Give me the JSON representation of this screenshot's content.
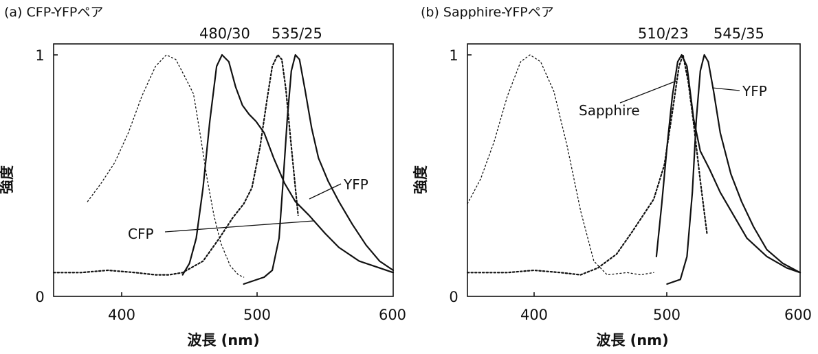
{
  "panels": [
    {
      "title": "(a)  CFP-YFPペア",
      "filters": [
        "480/30",
        "535/25"
      ],
      "ylabel": "強度",
      "xlabel": "波長 (nm)",
      "annotations": [
        "CFP",
        "YFP"
      ]
    },
    {
      "title": "(b)  Sapphire-YFPペア",
      "filters": [
        "510/23",
        "545/35"
      ],
      "ylabel": "強度",
      "xlabel": "波長 (nm)",
      "annotations": [
        "Sapphire",
        "YFP"
      ]
    }
  ],
  "chart_data": [
    {
      "type": "line",
      "title": "(a)  CFP-YFPペア",
      "xlabel": "波長 (nm)",
      "ylabel": "強度",
      "xlim": [
        350,
        600
      ],
      "ylim": [
        0,
        1
      ],
      "xticks": [
        400,
        500,
        600
      ],
      "yticks": [
        0,
        1
      ],
      "filter_labels": [
        {
          "text": "480/30",
          "x": 480
        },
        {
          "text": "535/25",
          "x": 535
        }
      ],
      "series": [
        {
          "name": "CFP",
          "style": "dotted-thin",
          "points": [
            [
              375,
              0.36
            ],
            [
              385,
              0.44
            ],
            [
              395,
              0.53
            ],
            [
              405,
              0.66
            ],
            [
              415,
              0.82
            ],
            [
              425,
              0.95
            ],
            [
              433,
              1.0
            ],
            [
              440,
              0.98
            ],
            [
              447,
              0.9
            ],
            [
              453,
              0.83
            ],
            [
              458,
              0.65
            ],
            [
              463,
              0.46
            ],
            [
              468,
              0.3
            ],
            [
              473,
              0.18
            ],
            [
              480,
              0.08
            ],
            [
              486,
              0.04
            ],
            [
              490,
              0.03
            ]
          ]
        },
        {
          "style": "solid-bold",
          "points": [
            [
              445,
              0.04
            ],
            [
              450,
              0.09
            ],
            [
              455,
              0.2
            ],
            [
              460,
              0.42
            ],
            [
              465,
              0.71
            ],
            [
              470,
              0.95
            ],
            [
              474,
              1.0
            ],
            [
              479,
              0.97
            ],
            [
              484,
              0.86
            ],
            [
              489,
              0.78
            ],
            [
              494,
              0.74
            ],
            [
              499,
              0.71
            ],
            [
              505,
              0.66
            ],
            [
              512,
              0.55
            ],
            [
              520,
              0.44
            ],
            [
              528,
              0.36
            ],
            [
              538,
              0.3
            ],
            [
              550,
              0.22
            ],
            [
              560,
              0.16
            ],
            [
              575,
              0.1
            ],
            [
              590,
              0.07
            ],
            [
              600,
              0.05
            ]
          ]
        },
        {
          "style": "dotted-bold",
          "points": [
            [
              350,
              0.05
            ],
            [
              370,
              0.05
            ],
            [
              390,
              0.06
            ],
            [
              410,
              0.05
            ],
            [
              425,
              0.04
            ],
            [
              435,
              0.04
            ],
            [
              445,
              0.05
            ],
            [
              460,
              0.1
            ],
            [
              472,
              0.2
            ],
            [
              482,
              0.29
            ],
            [
              490,
              0.35
            ],
            [
              496,
              0.42
            ],
            [
              502,
              0.6
            ],
            [
              507,
              0.8
            ],
            [
              511,
              0.95
            ],
            [
              515,
              1.0
            ],
            [
              518,
              0.98
            ],
            [
              521,
              0.85
            ],
            [
              525,
              0.6
            ],
            [
              528,
              0.42
            ],
            [
              530,
              0.3
            ]
          ]
        },
        {
          "name": "YFP",
          "style": "solid-bold",
          "points": [
            [
              490,
              0.0
            ],
            [
              505,
              0.03
            ],
            [
              511,
              0.06
            ],
            [
              516,
              0.2
            ],
            [
              519,
              0.45
            ],
            [
              522,
              0.72
            ],
            [
              525,
              0.93
            ],
            [
              528,
              1.0
            ],
            [
              531,
              0.98
            ],
            [
              535,
              0.85
            ],
            [
              540,
              0.68
            ],
            [
              545,
              0.55
            ],
            [
              552,
              0.45
            ],
            [
              560,
              0.36
            ],
            [
              570,
              0.26
            ],
            [
              580,
              0.17
            ],
            [
              590,
              0.1
            ],
            [
              600,
              0.06
            ]
          ]
        }
      ]
    },
    {
      "type": "line",
      "title": "(b)  Sapphire-YFPペア",
      "xlabel": "波長 (nm)",
      "ylabel": "強度",
      "xlim": [
        350,
        600
      ],
      "ylim": [
        0,
        1
      ],
      "xticks": [
        400,
        500,
        600
      ],
      "yticks": [
        0,
        1
      ],
      "filter_labels": [
        {
          "text": "510/23",
          "x": 510
        },
        {
          "text": "545/35",
          "x": 545
        }
      ],
      "series": [
        {
          "style": "dotted-thin",
          "points": [
            [
              350,
              0.35
            ],
            [
              360,
              0.46
            ],
            [
              370,
              0.62
            ],
            [
              380,
              0.82
            ],
            [
              390,
              0.97
            ],
            [
              397,
              1.0
            ],
            [
              405,
              0.97
            ],
            [
              415,
              0.84
            ],
            [
              425,
              0.6
            ],
            [
              435,
              0.32
            ],
            [
              445,
              0.1
            ],
            [
              455,
              0.04
            ],
            [
              470,
              0.05
            ],
            [
              480,
              0.04
            ],
            [
              490,
              0.05
            ]
          ]
        },
        {
          "name": "Sapphire",
          "style": "solid-bold",
          "points": [
            [
              492,
              0.12
            ],
            [
              496,
              0.35
            ],
            [
              500,
              0.6
            ],
            [
              504,
              0.82
            ],
            [
              508,
              0.97
            ],
            [
              511,
              1.0
            ],
            [
              515,
              0.95
            ],
            [
              520,
              0.72
            ],
            [
              525,
              0.58
            ],
            [
              532,
              0.5
            ],
            [
              540,
              0.4
            ],
            [
              550,
              0.3
            ],
            [
              560,
              0.2
            ],
            [
              575,
              0.12
            ],
            [
              590,
              0.07
            ],
            [
              600,
              0.05
            ]
          ]
        },
        {
          "style": "dotted-bold",
          "points": [
            [
              350,
              0.05
            ],
            [
              380,
              0.05
            ],
            [
              400,
              0.06
            ],
            [
              420,
              0.05
            ],
            [
              435,
              0.04
            ],
            [
              448,
              0.07
            ],
            [
              462,
              0.13
            ],
            [
              474,
              0.23
            ],
            [
              482,
              0.3
            ],
            [
              490,
              0.37
            ],
            [
              498,
              0.52
            ],
            [
              504,
              0.75
            ],
            [
              509,
              0.95
            ],
            [
              512,
              1.0
            ],
            [
              516,
              0.88
            ],
            [
              520,
              0.7
            ],
            [
              525,
              0.45
            ],
            [
              530,
              0.22
            ]
          ]
        },
        {
          "name": "YFP",
          "style": "solid-bold",
          "points": [
            [
              500,
              0.0
            ],
            [
              510,
              0.02
            ],
            [
              515,
              0.12
            ],
            [
              519,
              0.4
            ],
            [
              522,
              0.72
            ],
            [
              525,
              0.93
            ],
            [
              528,
              1.0
            ],
            [
              531,
              0.97
            ],
            [
              535,
              0.84
            ],
            [
              540,
              0.66
            ],
            [
              548,
              0.48
            ],
            [
              556,
              0.36
            ],
            [
              565,
              0.25
            ],
            [
              575,
              0.15
            ],
            [
              587,
              0.09
            ],
            [
              600,
              0.05
            ]
          ]
        }
      ]
    }
  ]
}
